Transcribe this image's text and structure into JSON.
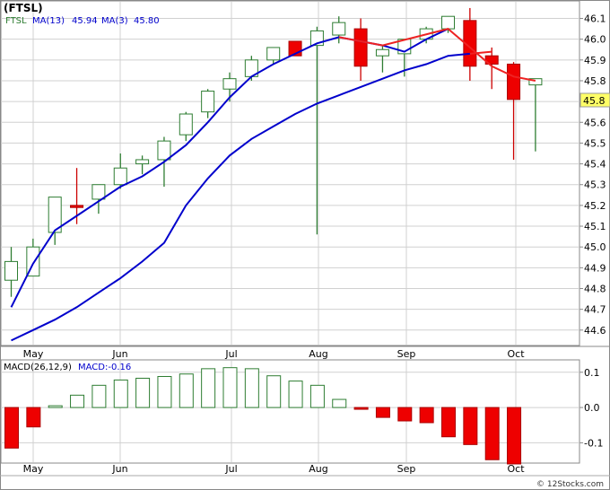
{
  "chart_data": [
    {
      "type": "candlestick",
      "title": "(FTSL)",
      "symbol": "FTSL",
      "x_labels": [
        "May",
        "Jun",
        "Jul",
        "Aug",
        "Sep",
        "Oct"
      ],
      "y_ticks": [
        "44.6",
        "44.7",
        "44.8",
        "44.9",
        "45.0",
        "45.1",
        "45.2",
        "45.3",
        "45.4",
        "45.5",
        "45.6",
        "45.7",
        "45.8",
        "45.9",
        "46.0",
        "46.1"
      ],
      "ylim": [
        44.53,
        46.18
      ],
      "last_price": "45.8",
      "grid": true,
      "legend": [
        {
          "label": "FTSL",
          "color": "#2e7d32"
        },
        {
          "label": "MA(13)",
          "value": "45.94",
          "color": "#0000cc"
        },
        {
          "label": "MA(3)",
          "value": "45.80",
          "color": "#0000cc"
        }
      ],
      "candles": [
        {
          "o": 44.84,
          "h": 45.0,
          "l": 44.76,
          "c": 44.93
        },
        {
          "o": 44.86,
          "h": 45.04,
          "l": 44.86,
          "c": 45.0
        },
        {
          "o": 45.07,
          "h": 45.24,
          "l": 45.01,
          "c": 45.24
        },
        {
          "o": 45.2,
          "h": 45.38,
          "l": 45.11,
          "c": 45.19
        },
        {
          "o": 45.23,
          "h": 45.3,
          "l": 45.16,
          "c": 45.3
        },
        {
          "o": 45.3,
          "h": 45.45,
          "l": 45.28,
          "c": 45.38
        },
        {
          "o": 45.4,
          "h": 45.44,
          "l": 45.35,
          "c": 45.42
        },
        {
          "o": 45.42,
          "h": 45.53,
          "l": 45.29,
          "c": 45.51
        },
        {
          "o": 45.54,
          "h": 45.65,
          "l": 45.51,
          "c": 45.64
        },
        {
          "o": 45.65,
          "h": 45.76,
          "l": 45.62,
          "c": 45.75
        },
        {
          "o": 45.76,
          "h": 45.84,
          "l": 45.7,
          "c": 45.81
        },
        {
          "o": 45.82,
          "h": 45.92,
          "l": 45.8,
          "c": 45.9
        },
        {
          "o": 45.9,
          "h": 45.96,
          "l": 45.88,
          "c": 45.96
        },
        {
          "o": 45.99,
          "h": 45.99,
          "l": 45.92,
          "c": 45.92
        },
        {
          "o": 45.97,
          "h": 46.06,
          "l": 45.06,
          "c": 46.04
        },
        {
          "o": 46.02,
          "h": 46.11,
          "l": 45.98,
          "c": 46.08
        },
        {
          "o": 46.05,
          "h": 46.1,
          "l": 45.8,
          "c": 45.87
        },
        {
          "o": 45.92,
          "h": 45.97,
          "l": 45.84,
          "c": 45.95
        },
        {
          "o": 45.93,
          "h": 46.0,
          "l": 45.82,
          "c": 46.0
        },
        {
          "o": 46.0,
          "h": 46.06,
          "l": 45.98,
          "c": 46.05
        },
        {
          "o": 46.05,
          "h": 46.11,
          "l": 46.03,
          "c": 46.11
        },
        {
          "o": 46.09,
          "h": 46.15,
          "l": 45.8,
          "c": 45.87
        },
        {
          "o": 45.92,
          "h": 45.96,
          "l": 45.76,
          "c": 45.88
        },
        {
          "o": 45.88,
          "h": 45.89,
          "l": 45.42,
          "c": 45.71
        },
        {
          "o": 45.78,
          "h": 45.81,
          "l": 45.46,
          "c": 45.81
        }
      ],
      "ma13": [
        44.55,
        44.6,
        44.65,
        44.71,
        44.78,
        44.85,
        44.93,
        45.02,
        45.2,
        45.33,
        45.44,
        45.52,
        45.58,
        45.64,
        45.69,
        45.73,
        45.77,
        45.81,
        45.85,
        45.88,
        45.92,
        45.93,
        45.94
      ],
      "ma3": [
        44.71,
        44.92,
        45.08,
        45.15,
        45.22,
        45.29,
        45.34,
        45.41,
        45.49,
        45.6,
        45.72,
        45.82,
        45.88,
        45.93,
        45.98,
        46.01,
        45.99,
        45.97,
        45.94,
        46.0,
        46.05,
        45.96,
        45.87,
        45.82,
        45.8
      ]
    },
    {
      "type": "bar",
      "title": "MACD(26,12,9)",
      "legend_label": "MACD:-0.16",
      "y_ticks": [
        "0.1",
        "0.0",
        "-0.1"
      ],
      "ylim": [
        -0.155,
        0.13
      ],
      "values": [
        -0.115,
        -0.055,
        0.005,
        0.035,
        0.063,
        0.078,
        0.083,
        0.088,
        0.095,
        0.11,
        0.113,
        0.11,
        0.09,
        0.075,
        0.063,
        0.023,
        -0.005,
        -0.028,
        -0.038,
        -0.043,
        -0.083,
        -0.105,
        -0.148,
        -0.16
      ]
    }
  ],
  "copyright": "© 12Stocks.com"
}
